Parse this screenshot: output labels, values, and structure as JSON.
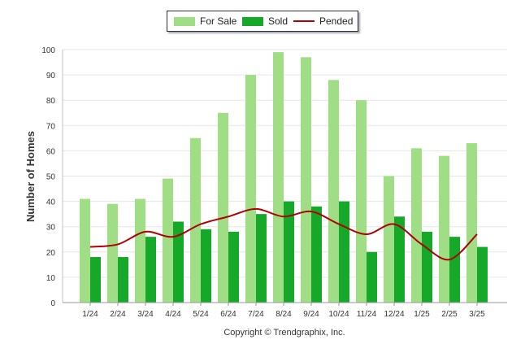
{
  "chart_data": {
    "type": "bar",
    "ylabel": "Number of Homes",
    "ylim": [
      0,
      100
    ],
    "yticks": [
      0,
      10,
      20,
      30,
      40,
      50,
      60,
      70,
      80,
      90,
      100
    ],
    "categories": [
      "1/24",
      "2/24",
      "3/24",
      "4/24",
      "5/24",
      "6/24",
      "7/24",
      "8/24",
      "9/24",
      "10/24",
      "11/24",
      "12/24",
      "1/25",
      "2/25",
      "3/25"
    ],
    "series": [
      {
        "name": "For Sale",
        "kind": "bar",
        "color": "#a0de86",
        "values": [
          41,
          39,
          41,
          49,
          65,
          75,
          90,
          99,
          97,
          88,
          80,
          50,
          61,
          58,
          63
        ]
      },
      {
        "name": "Sold",
        "kind": "bar",
        "color": "#16a829",
        "values": [
          18,
          18,
          26,
          32,
          29,
          28,
          35,
          40,
          38,
          40,
          20,
          34,
          28,
          26,
          22
        ]
      },
      {
        "name": "Pended",
        "kind": "line",
        "color": "#b00000",
        "values": [
          22,
          23,
          28,
          26,
          31,
          34,
          37,
          34,
          36,
          31,
          27,
          31,
          23,
          17,
          27
        ]
      }
    ],
    "legend_position": "top-center",
    "grid": true
  },
  "footer": {
    "copyright": "Copyright © Trendgraphix, Inc."
  }
}
